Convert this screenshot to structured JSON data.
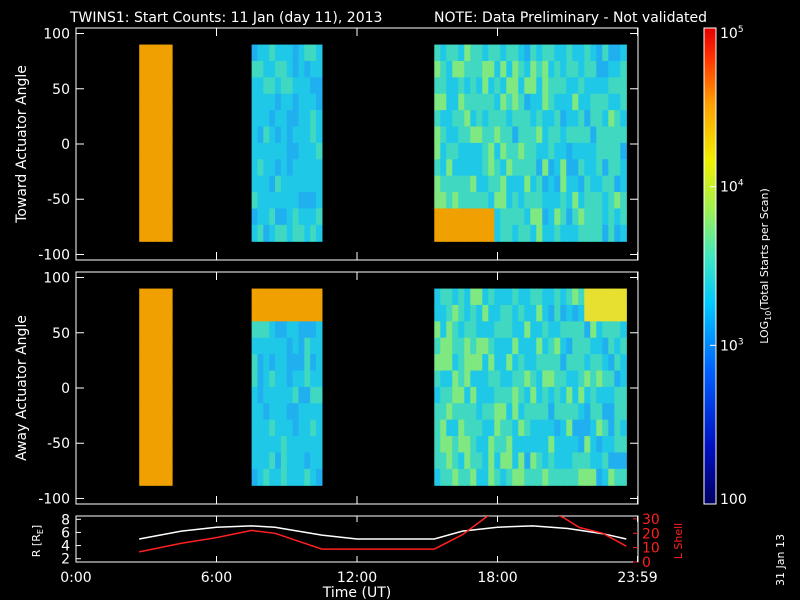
{
  "header": {
    "title": "TWINS1: Start Counts: 11 Jan (day  11), 2013",
    "note": "NOTE: Data Preliminary - Not validated",
    "note_color": "#ff2020"
  },
  "footer": {
    "date_stamp": "31 Jan 13"
  },
  "chart_data": [
    {
      "id": "toward",
      "type": "heatmap",
      "ylabel": "Toward Actuator Angle",
      "xlim": [
        0,
        24
      ],
      "ylim": [
        -105,
        105
      ],
      "yticks": [
        "100",
        "50",
        "0",
        "-50",
        "-100"
      ],
      "ytick_values": [
        100,
        50,
        0,
        -50,
        -100
      ],
      "data_blocks_hours": [
        [
          2.7,
          4.1
        ],
        [
          7.5,
          10.5
        ],
        [
          15.3,
          23.5
        ]
      ],
      "angle_range": [
        -88,
        90
      ]
    },
    {
      "id": "away",
      "type": "heatmap",
      "ylabel": "Away Actuator Angle",
      "xlim": [
        0,
        24
      ],
      "ylim": [
        -105,
        105
      ],
      "yticks": [
        "100",
        "50",
        "0",
        "-50",
        "-100"
      ],
      "ytick_values": [
        100,
        50,
        0,
        -50,
        -100
      ],
      "data_blocks_hours": [
        [
          2.7,
          4.1
        ],
        [
          7.5,
          10.5
        ],
        [
          15.3,
          23.5
        ]
      ],
      "angle_range": [
        -88,
        90
      ]
    },
    {
      "id": "orbit",
      "type": "line",
      "xlabel": "Time (UT)",
      "xlim": [
        0,
        24
      ],
      "xticks": [
        "0:00",
        "6:00",
        "12:00",
        "18:00",
        "23:59"
      ],
      "xtick_values": [
        0,
        6,
        12,
        18,
        23.98
      ],
      "left_axis": {
        "label": "R [R",
        "label_sub": "E",
        "label_end": "]",
        "ticks": [
          "8",
          "6",
          "4",
          "2"
        ],
        "tick_values": [
          8,
          6,
          4,
          2
        ],
        "range": [
          1.5,
          8.5
        ]
      },
      "right_axis": {
        "label": "L Shell",
        "ticks": [
          "30",
          "20",
          "10",
          "0"
        ],
        "tick_values": [
          30,
          20,
          10,
          0
        ],
        "range": [
          0,
          32
        ],
        "color": "#ff2020"
      },
      "series": [
        {
          "axis": "left",
          "color": "#ffffff",
          "x": [
            2.7,
            4.5,
            6,
            7.5,
            8.5,
            10.5,
            12,
            13.5,
            15.3,
            16.5,
            18,
            19.5,
            21,
            22.5,
            23.5
          ],
          "y": [
            5.0,
            6.2,
            6.8,
            7.0,
            6.8,
            5.6,
            5.0,
            5.0,
            5.0,
            6.2,
            6.8,
            7.0,
            6.6,
            5.8,
            5.0
          ]
        },
        {
          "axis": "right",
          "color": "#ff2020",
          "x": [
            2.7,
            4.5,
            6,
            7.5,
            8.5,
            10.5,
            12,
            13.5,
            15.3,
            16.5,
            17.5,
            18.3,
            19.5,
            20.8,
            21.5,
            22.5,
            23.5
          ],
          "y": [
            7,
            13,
            17,
            22,
            20,
            9,
            9,
            9,
            9,
            19,
            31,
            40,
            40,
            31,
            24,
            20,
            11
          ]
        }
      ]
    }
  ],
  "colorbar": {
    "label_pre": "LOG",
    "label_sub": "10",
    "label_post": "(Total Starts per Scan)",
    "ticks": [
      "10",
      "10",
      "10",
      "100"
    ],
    "tick_exps": [
      "5",
      "4",
      "3",
      ""
    ],
    "tick_values": [
      100000,
      10000,
      1000,
      100
    ],
    "range": [
      100,
      100000
    ],
    "log_scale": true
  }
}
